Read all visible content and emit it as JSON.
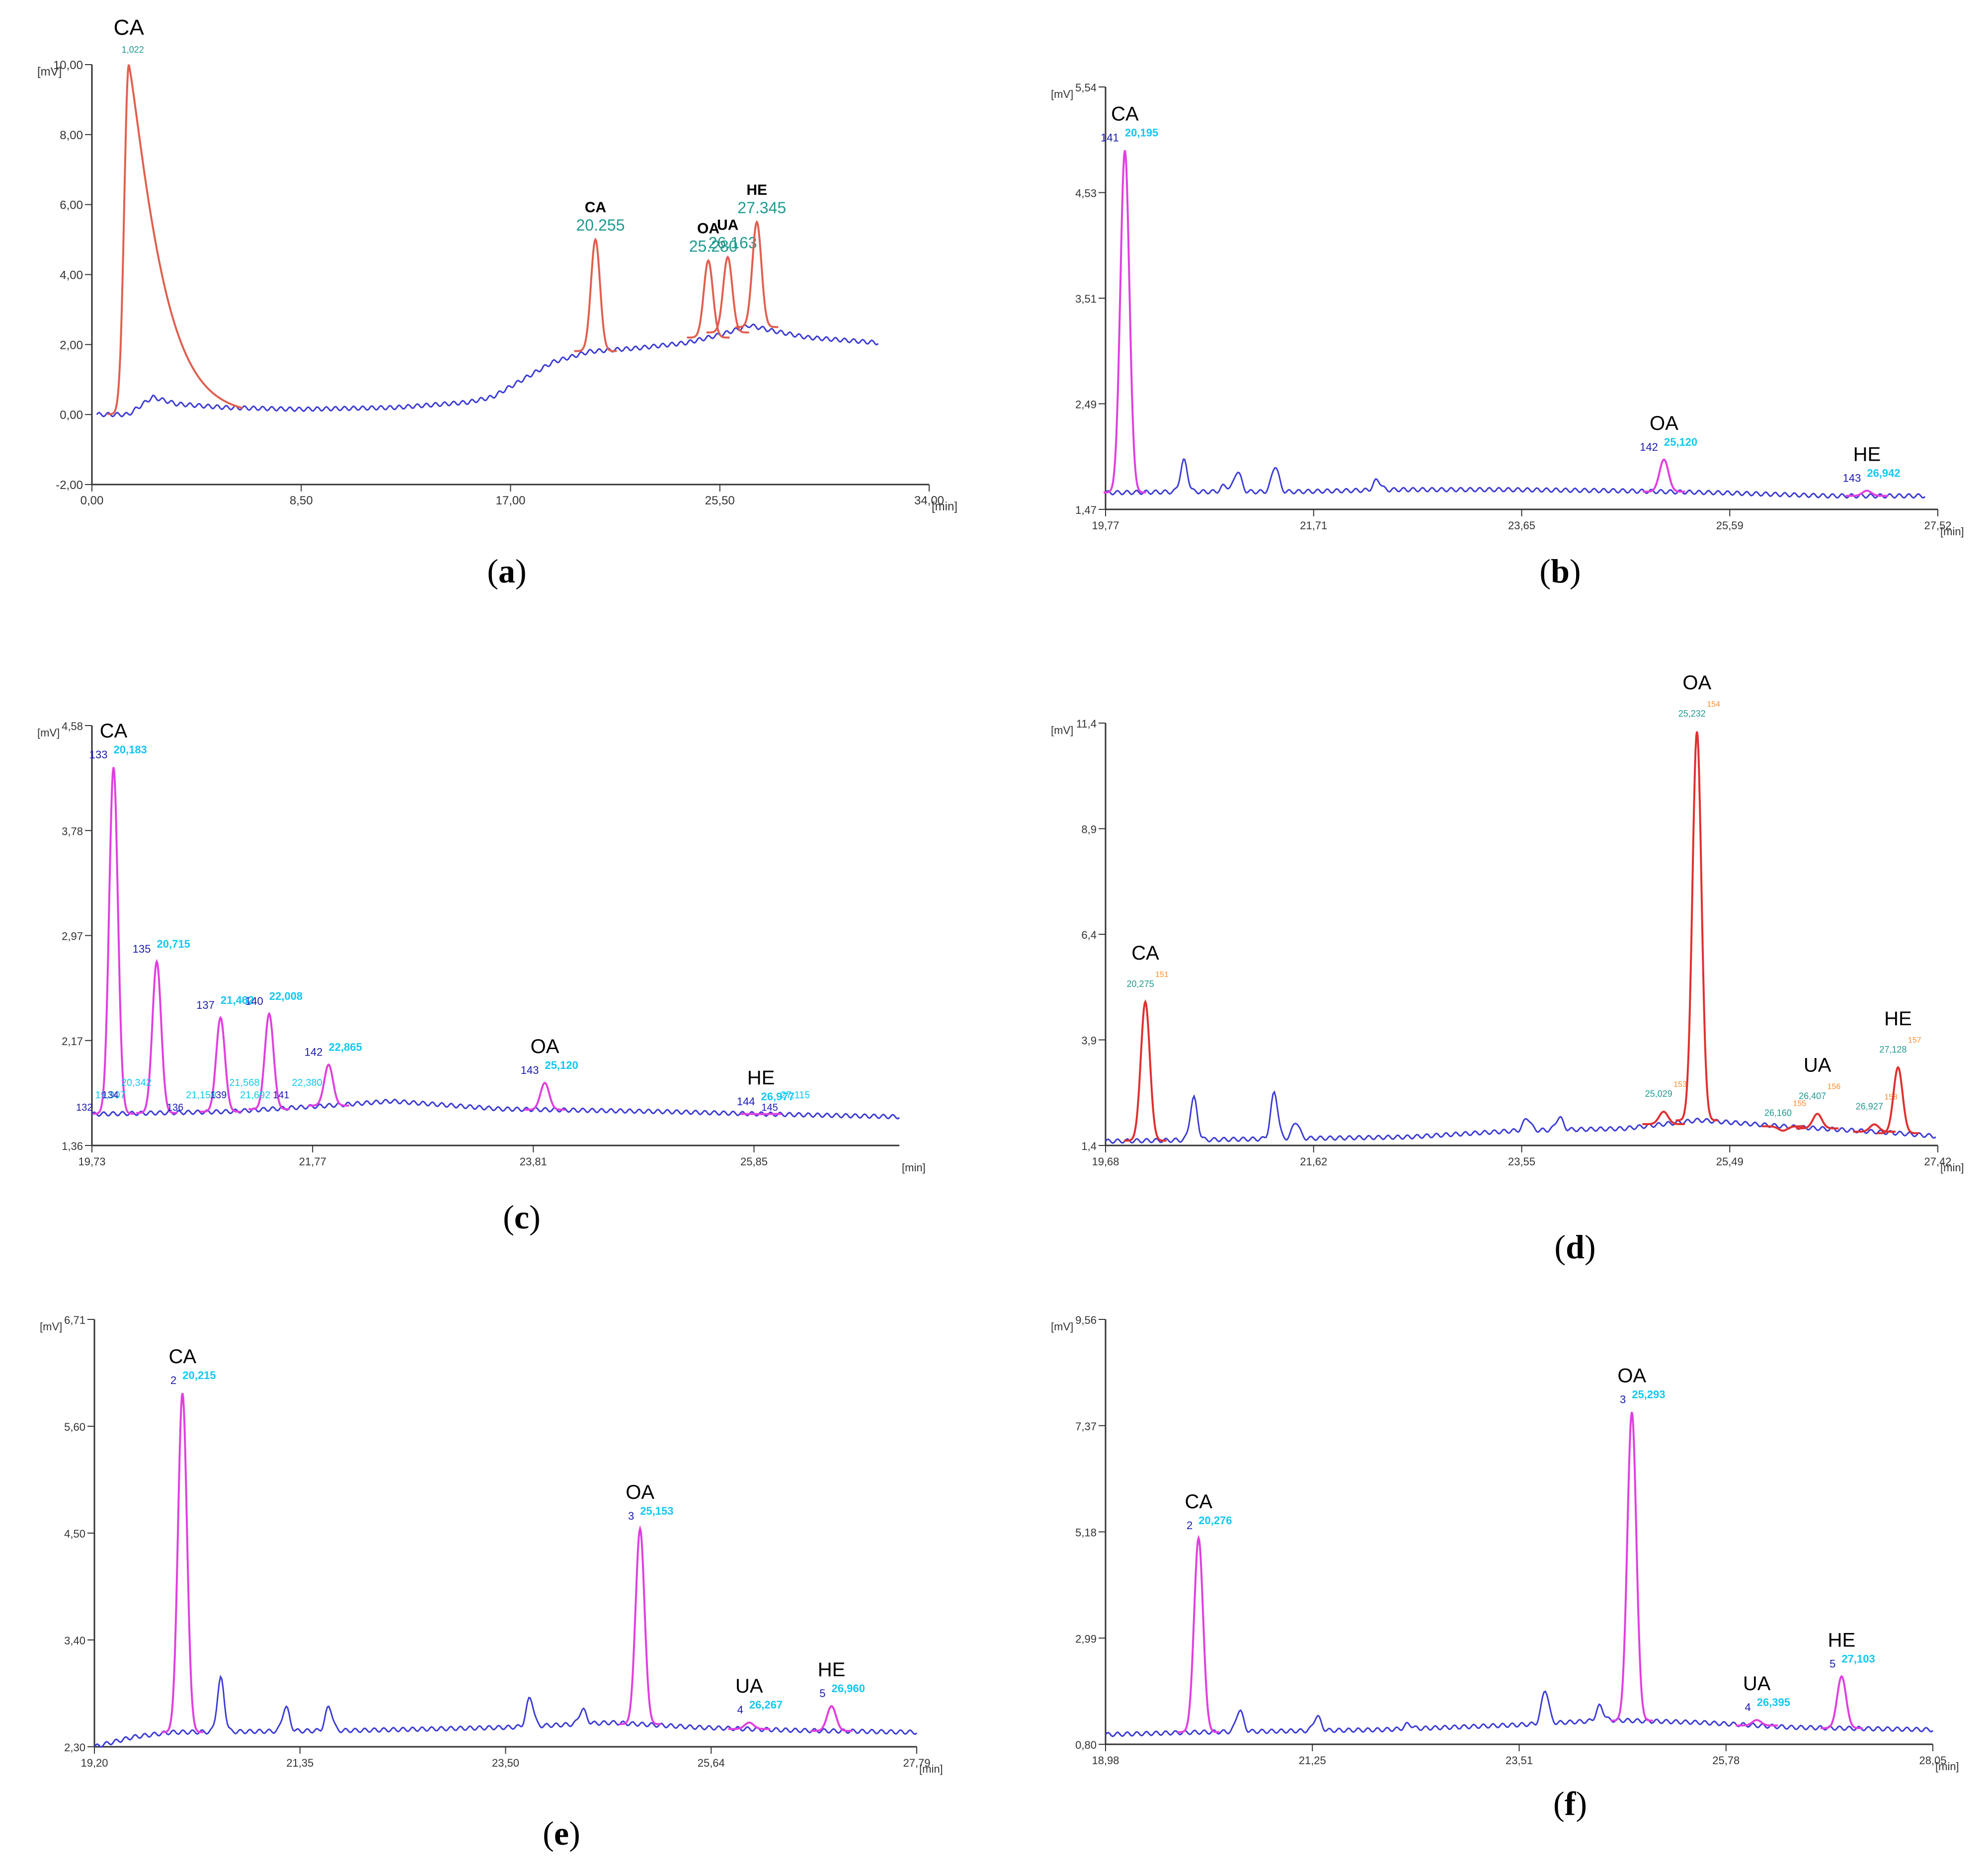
{
  "figure": {
    "panel_labels": {
      "a": "a",
      "b": "b",
      "c": "c",
      "d": "d",
      "e": "e",
      "f": "f"
    },
    "colors": {
      "baseline": "#3b3bd6",
      "peak_a": "#e06050",
      "peak_pink": "#e040e0",
      "peak_red": "#e03030",
      "rt_cyan": "#12c8f0",
      "rt_teal": "#1f9a8f",
      "peak_num": "#1a1ab0",
      "orange": "#ff8c2a",
      "axis": "#333333"
    }
  },
  "chart_data": [
    {
      "id": "a",
      "type": "line",
      "unit_y": "[mV]",
      "unit_x": "[min]",
      "yticks": [
        "-2,00",
        "0,00",
        "2,00",
        "4,00",
        "6,00",
        "8,00",
        "10,00"
      ],
      "xticks": [
        "0,00",
        "8,50",
        "17,00",
        "25,50",
        "34,00"
      ],
      "xlim": [
        -0.5,
        34
      ],
      "ylim": [
        -2,
        10
      ],
      "baseline": [
        [
          -0.3,
          0
        ],
        [
          1,
          0
        ],
        [
          2,
          0.5
        ],
        [
          3,
          0.3
        ],
        [
          5,
          0.2
        ],
        [
          8,
          0.15
        ],
        [
          12,
          0.2
        ],
        [
          15,
          0.35
        ],
        [
          16,
          0.5
        ],
        [
          17,
          0.9
        ],
        [
          18.5,
          1.5
        ],
        [
          20,
          1.8
        ],
        [
          22,
          1.9
        ],
        [
          24,
          2.05
        ],
        [
          25.5,
          2.3
        ],
        [
          26.6,
          2.55
        ],
        [
          27.5,
          2.4
        ],
        [
          29,
          2.2
        ],
        [
          31,
          2.1
        ],
        [
          31.9,
          2.05
        ]
      ],
      "peaks": [
        {
          "name": "CA",
          "rt": "1,022",
          "center": 1.02,
          "height": 10,
          "tail": true,
          "name_style": "plain",
          "rt_color": "#1f9a8f"
        },
        {
          "name": "CA",
          "rt": "20.255",
          "center": 20.25,
          "height": 5.0,
          "name_style": "bold",
          "rt_color": "#1f9a8f"
        },
        {
          "name": "OA",
          "rt": "25.280",
          "center": 24.9,
          "height": 4.4,
          "name_style": "bold",
          "rt_color": "#1f9a8f"
        },
        {
          "name": "UA",
          "rt": "26.163",
          "center": 25.7,
          "height": 4.5,
          "name_style": "bold",
          "rt_color": "#1f9a8f"
        },
        {
          "name": "HE",
          "rt": "27.345",
          "center": 26.9,
          "height": 5.5,
          "name_style": "bold",
          "rt_color": "#1f9a8f"
        }
      ]
    },
    {
      "id": "b",
      "type": "line",
      "unit_y": "[mV]",
      "unit_x": "[min]",
      "yticks": [
        "1,47",
        "2,49",
        "3,51",
        "4,53",
        "5,54"
      ],
      "xticks": [
        "19,77",
        "21,71",
        "23,65",
        "25,59",
        "27,52"
      ],
      "xlim": [
        19.77,
        27.52
      ],
      "ylim": [
        1.47,
        5.54
      ],
      "baseline": [
        [
          19.77,
          1.63
        ],
        [
          20.5,
          1.64
        ],
        [
          21.5,
          1.64
        ],
        [
          22.5,
          1.66
        ],
        [
          23.5,
          1.66
        ],
        [
          24.5,
          1.65
        ],
        [
          25.5,
          1.63
        ],
        [
          26.5,
          1.6
        ],
        [
          27.4,
          1.6
        ]
      ],
      "minor": [
        [
          20.5,
          0.3
        ],
        [
          20.88,
          0.06
        ],
        [
          21.0,
          0.2
        ],
        [
          21.35,
          0.25
        ],
        [
          22.3,
          0.1
        ]
      ],
      "peaks": [
        {
          "name": "CA",
          "num": "141",
          "rt": "20,195",
          "center": 19.95,
          "height": 4.93
        },
        {
          "name": "OA",
          "num": "142",
          "rt": "25,120",
          "center": 24.97,
          "height": 1.95
        },
        {
          "name": "HE",
          "num": "143",
          "rt": "26,942",
          "center": 26.86,
          "height": 1.65
        }
      ]
    },
    {
      "id": "c",
      "type": "line",
      "unit_y": "[mV]",
      "unit_x": "[min]",
      "yticks": [
        "1,36",
        "2,17",
        "2,97",
        "3,78",
        "4,58"
      ],
      "xticks": [
        "19,73",
        "21,77",
        "23,81",
        "25,85"
      ],
      "xlim": [
        19.73,
        27.2
      ],
      "ylim": [
        1.36,
        4.58
      ],
      "baseline": [
        [
          19.73,
          1.6
        ],
        [
          21,
          1.62
        ],
        [
          22,
          1.67
        ],
        [
          22.5,
          1.7
        ],
        [
          23.5,
          1.64
        ],
        [
          25,
          1.62
        ],
        [
          26,
          1.6
        ],
        [
          27.2,
          1.58
        ]
      ],
      "peaks": [
        {
          "name": "CA",
          "num": "133",
          "rt": "20,183",
          "center": 19.93,
          "height": 4.26
        },
        {
          "name": "",
          "num": "135",
          "rt": "20,715",
          "center": 20.33,
          "height": 2.77
        },
        {
          "name": "",
          "num": "137",
          "rt": "21,462",
          "center": 20.92,
          "height": 2.34
        },
        {
          "name": "",
          "num": "140",
          "rt": "22,008",
          "center": 21.37,
          "height": 2.37
        },
        {
          "name": "",
          "num": "142",
          "rt": "22,865",
          "center": 21.92,
          "height": 1.98
        },
        {
          "name": "OA",
          "num": "143",
          "rt": "25,120",
          "center": 23.92,
          "height": 1.84
        },
        {
          "name": "HE",
          "num": "144",
          "rt": "26,977",
          "center": 25.92,
          "height": 1.6
        }
      ],
      "minor_labels": [
        {
          "num": "132",
          "rt": "19,907",
          "x": 19.76
        },
        {
          "num": "134",
          "rt": "20,342",
          "x": 20.0
        },
        {
          "num": "136",
          "rt": "21,159",
          "x": 20.6
        },
        {
          "num": "139",
          "rt": "21,568",
          "x": 21.0
        },
        {
          "num": "",
          "rt": "21,692",
          "x": 21.1
        },
        {
          "num": "141",
          "rt": "22,380",
          "x": 21.58
        },
        {
          "num": "145",
          "rt": "27,115",
          "x": 26.1
        }
      ]
    },
    {
      "id": "d",
      "type": "line",
      "unit_y": "[mV]",
      "unit_x": "[min]",
      "yticks": [
        "1,4",
        "3,9",
        "6,4",
        "8,9",
        "11,4"
      ],
      "xticks": [
        "19,68",
        "21,62",
        "23,55",
        "25,49",
        "27,42"
      ],
      "xlim": [
        19.68,
        27.42
      ],
      "ylim": [
        1.4,
        11.4
      ],
      "baseline": [
        [
          19.68,
          1.5
        ],
        [
          21,
          1.55
        ],
        [
          22.5,
          1.6
        ],
        [
          23.5,
          1.75
        ],
        [
          24.5,
          1.8
        ],
        [
          25.2,
          2.0
        ],
        [
          26,
          1.85
        ],
        [
          27,
          1.7
        ],
        [
          27.4,
          1.62
        ]
      ],
      "minor": [
        [
          20.5,
          1.0
        ],
        [
          21.25,
          1.1
        ],
        [
          21.45,
          0.4
        ],
        [
          23.6,
          0.3
        ],
        [
          23.9,
          0.3
        ]
      ],
      "peaks": [
        {
          "name": "CA",
          "num": "151",
          "rt": "20,275",
          "center": 20.05,
          "height": 4.8
        },
        {
          "name": "",
          "num": "153",
          "rt": "25,029",
          "center": 24.87,
          "height": 2.2
        },
        {
          "name": "OA",
          "num": "154",
          "rt": "25,232",
          "center": 25.18,
          "height": 11.2
        },
        {
          "name": "",
          "num": "155",
          "rt": "26,160",
          "center": 25.98,
          "height": 1.75
        },
        {
          "name": "UA",
          "num": "156",
          "rt": "26,407",
          "center": 26.3,
          "height": 2.15
        },
        {
          "name": "",
          "num": "158",
          "rt": "26,927",
          "center": 26.83,
          "height": 1.9
        },
        {
          "name": "HE",
          "num": "157",
          "rt": "27,128",
          "center": 27.05,
          "height": 3.25
        }
      ]
    },
    {
      "id": "e",
      "type": "line",
      "unit_y": "[mV]",
      "unit_x": "[min]",
      "yticks": [
        "2,30",
        "3,40",
        "4,50",
        "5,60",
        "6,71"
      ],
      "xticks": [
        "19,20",
        "21,35",
        "23,50",
        "25,64",
        "27,79"
      ],
      "xlim": [
        19.2,
        27.79
      ],
      "ylim": [
        2.3,
        6.71
      ],
      "baseline": [
        [
          19.2,
          2.3
        ],
        [
          19.6,
          2.4
        ],
        [
          20,
          2.45
        ],
        [
          22,
          2.47
        ],
        [
          23.5,
          2.5
        ],
        [
          24.6,
          2.55
        ],
        [
          25.5,
          2.5
        ],
        [
          26.5,
          2.47
        ],
        [
          27.79,
          2.45
        ]
      ],
      "minor": [
        [
          20.52,
          0.55
        ],
        [
          21.2,
          0.25
        ],
        [
          21.65,
          0.25
        ],
        [
          23.75,
          0.3
        ],
        [
          24.3,
          0.15
        ]
      ],
      "peaks": [
        {
          "name": "CA",
          "num": "2",
          "rt": "20,215",
          "center": 20.12,
          "height": 5.95
        },
        {
          "name": "OA",
          "num": "3",
          "rt": "25,153",
          "center": 24.9,
          "height": 4.55
        },
        {
          "name": "UA",
          "num": "4",
          "rt": "26,267",
          "center": 26.04,
          "height": 2.55
        },
        {
          "name": "HE",
          "num": "5",
          "rt": "26,960",
          "center": 26.9,
          "height": 2.72
        }
      ]
    },
    {
      "id": "f",
      "type": "line",
      "unit_y": "[mV]",
      "unit_x": "[min]",
      "yticks": [
        "0,80",
        "2,99",
        "5,18",
        "7,37",
        "9,56"
      ],
      "xticks": [
        "18,98",
        "21,25",
        "23,51",
        "25,78",
        "28,05"
      ],
      "xlim": [
        18.98,
        28.05
      ],
      "ylim": [
        0.8,
        9.56
      ],
      "baseline": [
        [
          18.98,
          1.0
        ],
        [
          20,
          1.05
        ],
        [
          22,
          1.1
        ],
        [
          23.5,
          1.2
        ],
        [
          24.5,
          1.3
        ],
        [
          25.5,
          1.25
        ],
        [
          26.5,
          1.15
        ],
        [
          28.05,
          1.1
        ]
      ],
      "minor": [
        [
          20.45,
          0.45
        ],
        [
          21.3,
          0.3
        ],
        [
          23.8,
          0.7
        ],
        [
          24.4,
          0.3
        ],
        [
          22.3,
          0.1
        ]
      ],
      "peaks": [
        {
          "name": "CA",
          "num": "2",
          "rt": "20,276",
          "center": 20.0,
          "height": 5.05
        },
        {
          "name": "OA",
          "num": "3",
          "rt": "25,293",
          "center": 24.75,
          "height": 7.65
        },
        {
          "name": "UA",
          "num": "4",
          "rt": "26,395",
          "center": 26.12,
          "height": 1.3
        },
        {
          "name": "HE",
          "num": "5",
          "rt": "27,103",
          "center": 27.05,
          "height": 2.2
        }
      ]
    }
  ]
}
